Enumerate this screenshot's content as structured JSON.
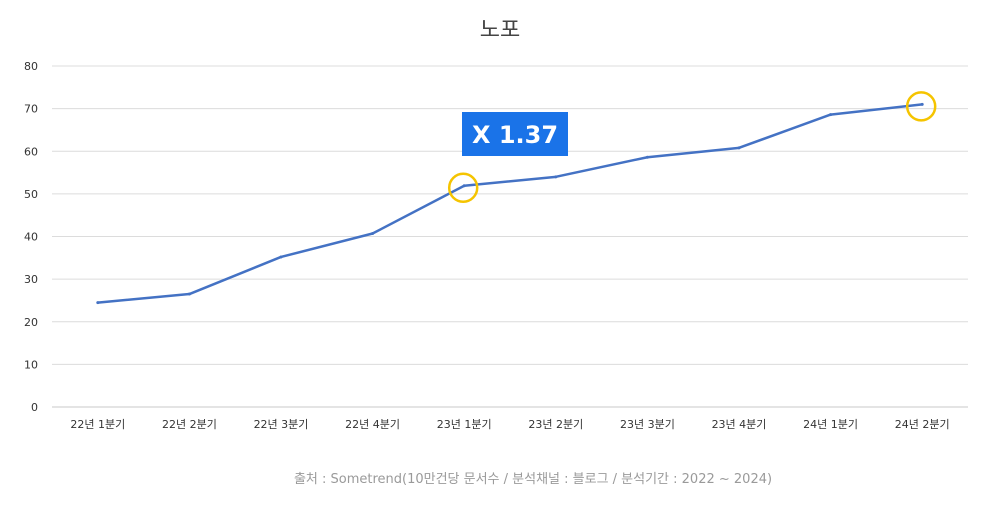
{
  "chart_data": {
    "type": "line",
    "title": "노포",
    "categories": [
      "22년 1분기",
      "22년 2분기",
      "22년 3분기",
      "22년 4분기",
      "23년 1분기",
      "23년 2분기",
      "23년 3분기",
      "23년 4분기",
      "24년 1분기",
      "24년 2분기"
    ],
    "values": [
      24.5,
      26.5,
      35.2,
      40.7,
      51.9,
      54.0,
      58.6,
      60.8,
      68.6,
      71.0
    ],
    "ylim": [
      0,
      80
    ],
    "yticks": [
      0,
      10,
      20,
      30,
      40,
      50,
      60,
      70,
      80
    ],
    "xlabel": "",
    "ylabel": "",
    "grid": true,
    "series_color": "#4472c4",
    "annotation": {
      "text": "X 1.37",
      "badge_color": "#1a73e8",
      "highlight_color": "#f5c400",
      "highlight_indices": [
        4,
        9
      ]
    },
    "source": "출처 : Sometrend(10만건당 문서수 / 분석채널 : 블로그 / 분석기간 : 2022 ~ 2024)"
  }
}
